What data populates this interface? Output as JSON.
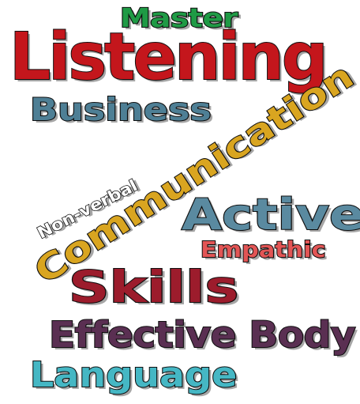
{
  "word_cloud": {
    "words": {
      "master": {
        "text": "Master",
        "color": "#1f9a45"
      },
      "listening": {
        "text": "Listening",
        "color": "#c4161c"
      },
      "business": {
        "text": "Business",
        "color": "#4e7f95"
      },
      "communication": {
        "text": "Communication",
        "color": "#d9a520"
      },
      "non_verbal": {
        "text": "Non-verbal",
        "color": "#ffffff"
      },
      "active": {
        "text": "Active",
        "color": "#5a8aa0"
      },
      "empathic": {
        "text": "Empathic",
        "color": "#e25555"
      },
      "skills": {
        "text": "Skills",
        "color": "#9c1c2c"
      },
      "effective_body": {
        "text": "Effective Body",
        "color": "#5a2f52"
      },
      "language": {
        "text": "Language",
        "color": "#45b7c4"
      }
    }
  }
}
